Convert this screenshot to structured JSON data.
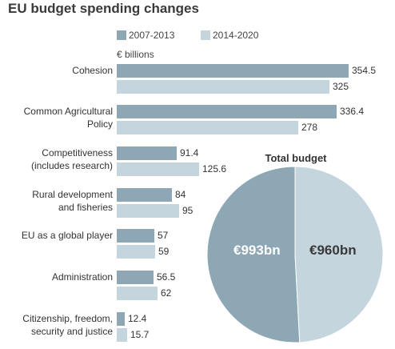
{
  "title": "EU budget spending changes",
  "colors": {
    "series1": "#8ea7b4",
    "series2": "#c5d5de"
  },
  "chart_data": [
    {
      "type": "bar",
      "orientation": "horizontal",
      "categories": [
        [
          "Cohesion"
        ],
        [
          "Common Agricultural",
          "Policy"
        ],
        [
          "Competitiveness",
          "(includes research)"
        ],
        [
          "Rural development",
          "and fisheries"
        ],
        [
          "EU as a global player"
        ],
        [
          "Administration"
        ],
        [
          "Citizenship, freedom,",
          "security and justice"
        ]
      ],
      "series": [
        {
          "name": "2007-2013",
          "values": [
            354.5,
            336.4,
            91.4,
            84,
            57,
            56.5,
            12.4
          ]
        },
        {
          "name": "2014-2020",
          "values": [
            325,
            278,
            125.6,
            95,
            59,
            62,
            15.7
          ]
        }
      ],
      "value_labels": [
        [
          "354.5",
          "336.4",
          "91.4",
          "84",
          "57",
          "56.5",
          "12.4"
        ],
        [
          "325",
          "278",
          "125.6",
          "95",
          "59",
          "62",
          "15.7"
        ]
      ],
      "unit_label": "€ billions",
      "legend": "top",
      "grid": false
    },
    {
      "type": "pie",
      "title": "Total budget",
      "values": [
        993,
        960
      ],
      "labels": [
        "€993bn",
        "€960bn"
      ]
    }
  ]
}
